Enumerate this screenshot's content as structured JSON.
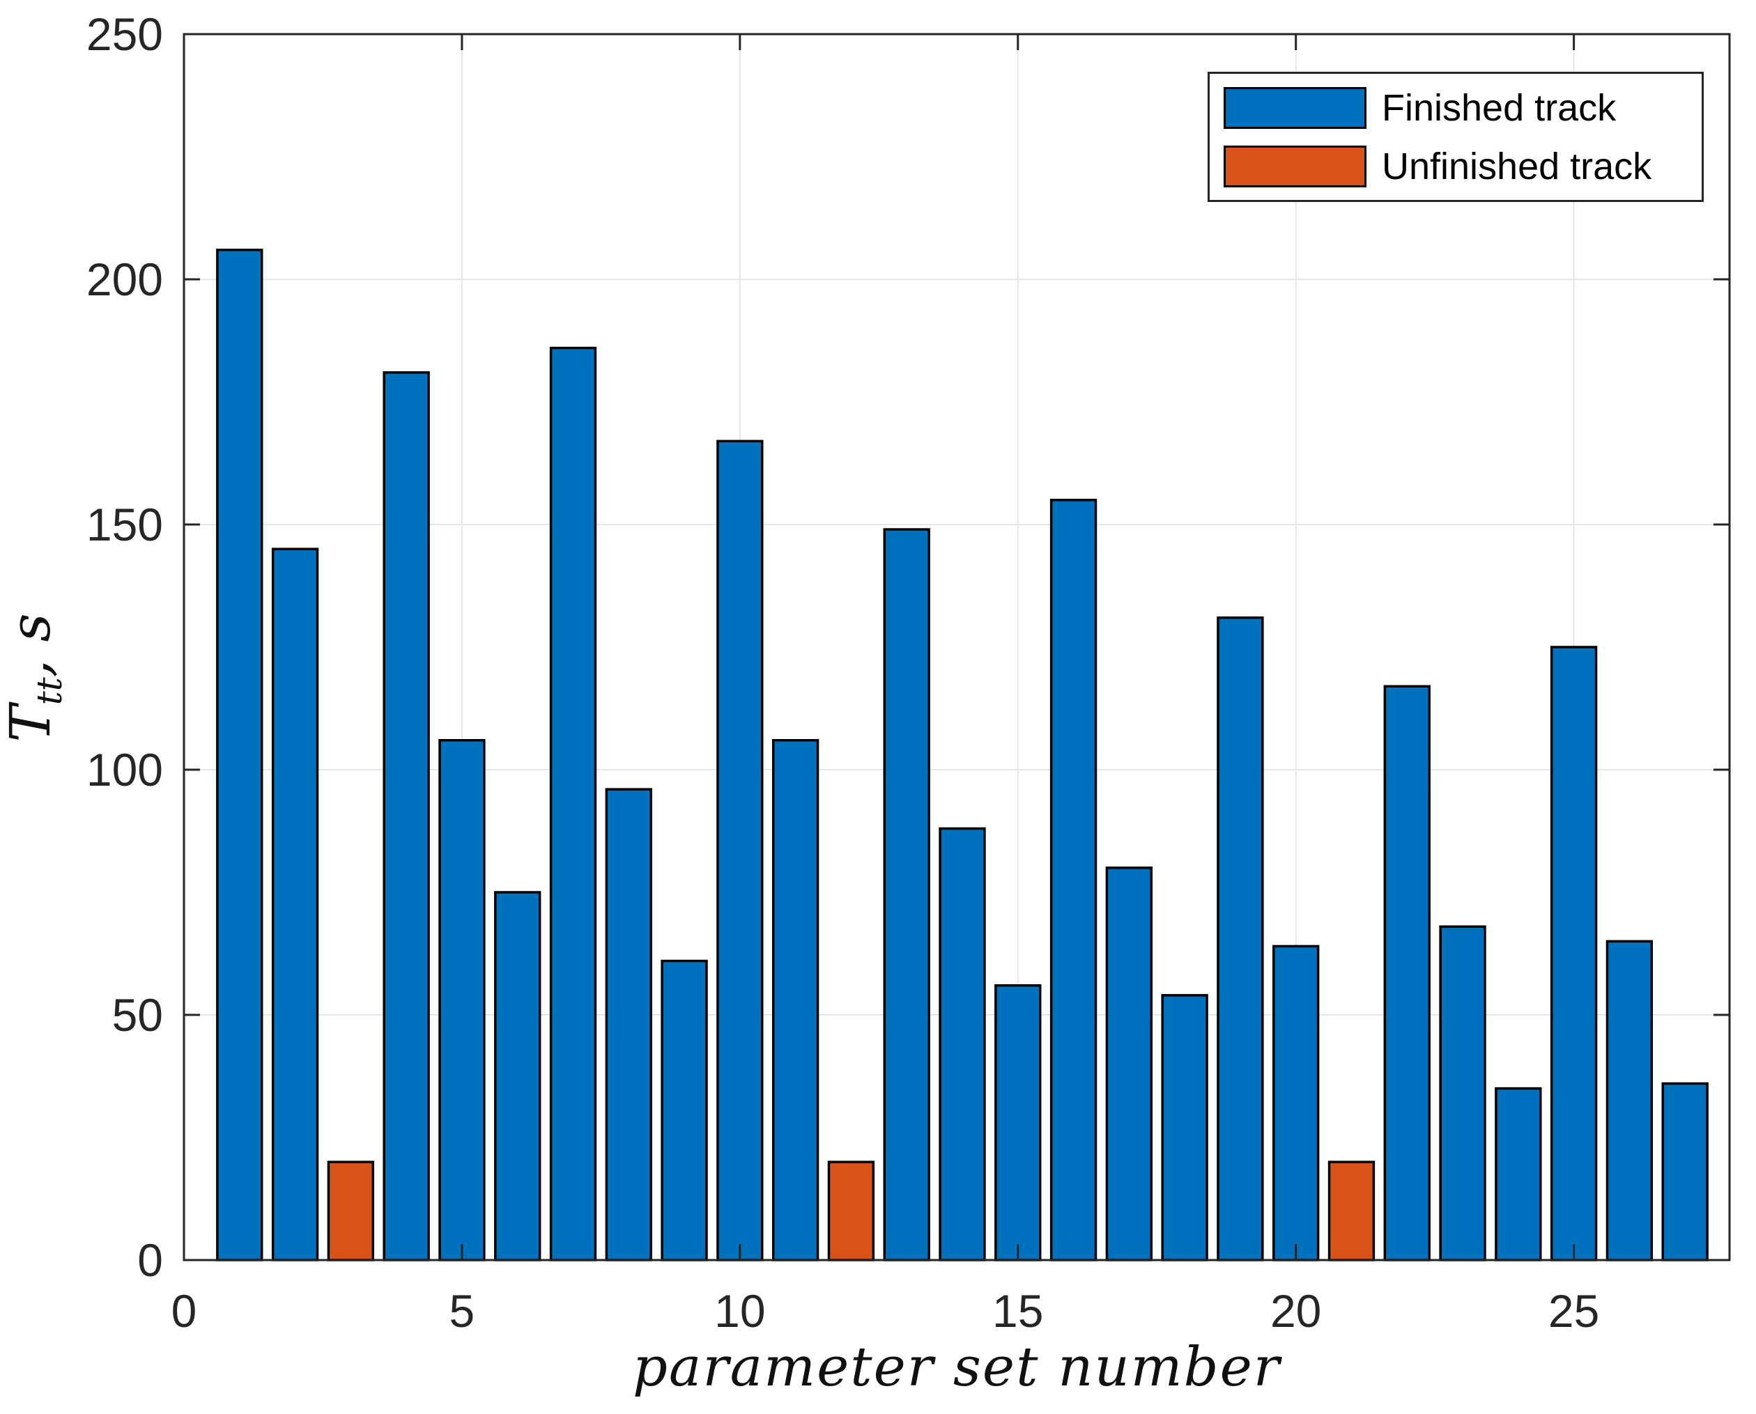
{
  "chart_data": {
    "type": "bar",
    "title": "",
    "xlabel": "parameter set number",
    "ylabel": {
      "main": "T",
      "sub": "tt",
      "rest": ", s"
    },
    "xlim": [
      0,
      27.8
    ],
    "ylim": [
      0,
      250
    ],
    "xticks": [
      0,
      5,
      10,
      15,
      20,
      25
    ],
    "yticks": [
      0,
      50,
      100,
      150,
      200,
      250
    ],
    "grid": true,
    "bar_width": 0.8,
    "x": [
      1,
      2,
      3,
      4,
      5,
      6,
      7,
      8,
      9,
      10,
      11,
      12,
      13,
      14,
      15,
      16,
      17,
      18,
      19,
      20,
      21,
      22,
      23,
      24,
      25,
      26,
      27
    ],
    "values": [
      206,
      145,
      20,
      181,
      106,
      75,
      186,
      96,
      61,
      167,
      106,
      20,
      149,
      88,
      56,
      155,
      80,
      54,
      131,
      64,
      20,
      117,
      68,
      35,
      125,
      65,
      36
    ],
    "unfinished_x": [
      3,
      12,
      21
    ],
    "legend": {
      "position": "top-right",
      "items": [
        {
          "label": "Finished track",
          "series": "finished"
        },
        {
          "label": "Unfinished track",
          "series": "unfinished"
        }
      ]
    },
    "colors": {
      "finished": "#0072BD",
      "unfinished": "#D95319",
      "bar_edge": "#000000",
      "grid": "#E6E6E6",
      "axis": "#262626",
      "tick_label": "#262626"
    }
  }
}
